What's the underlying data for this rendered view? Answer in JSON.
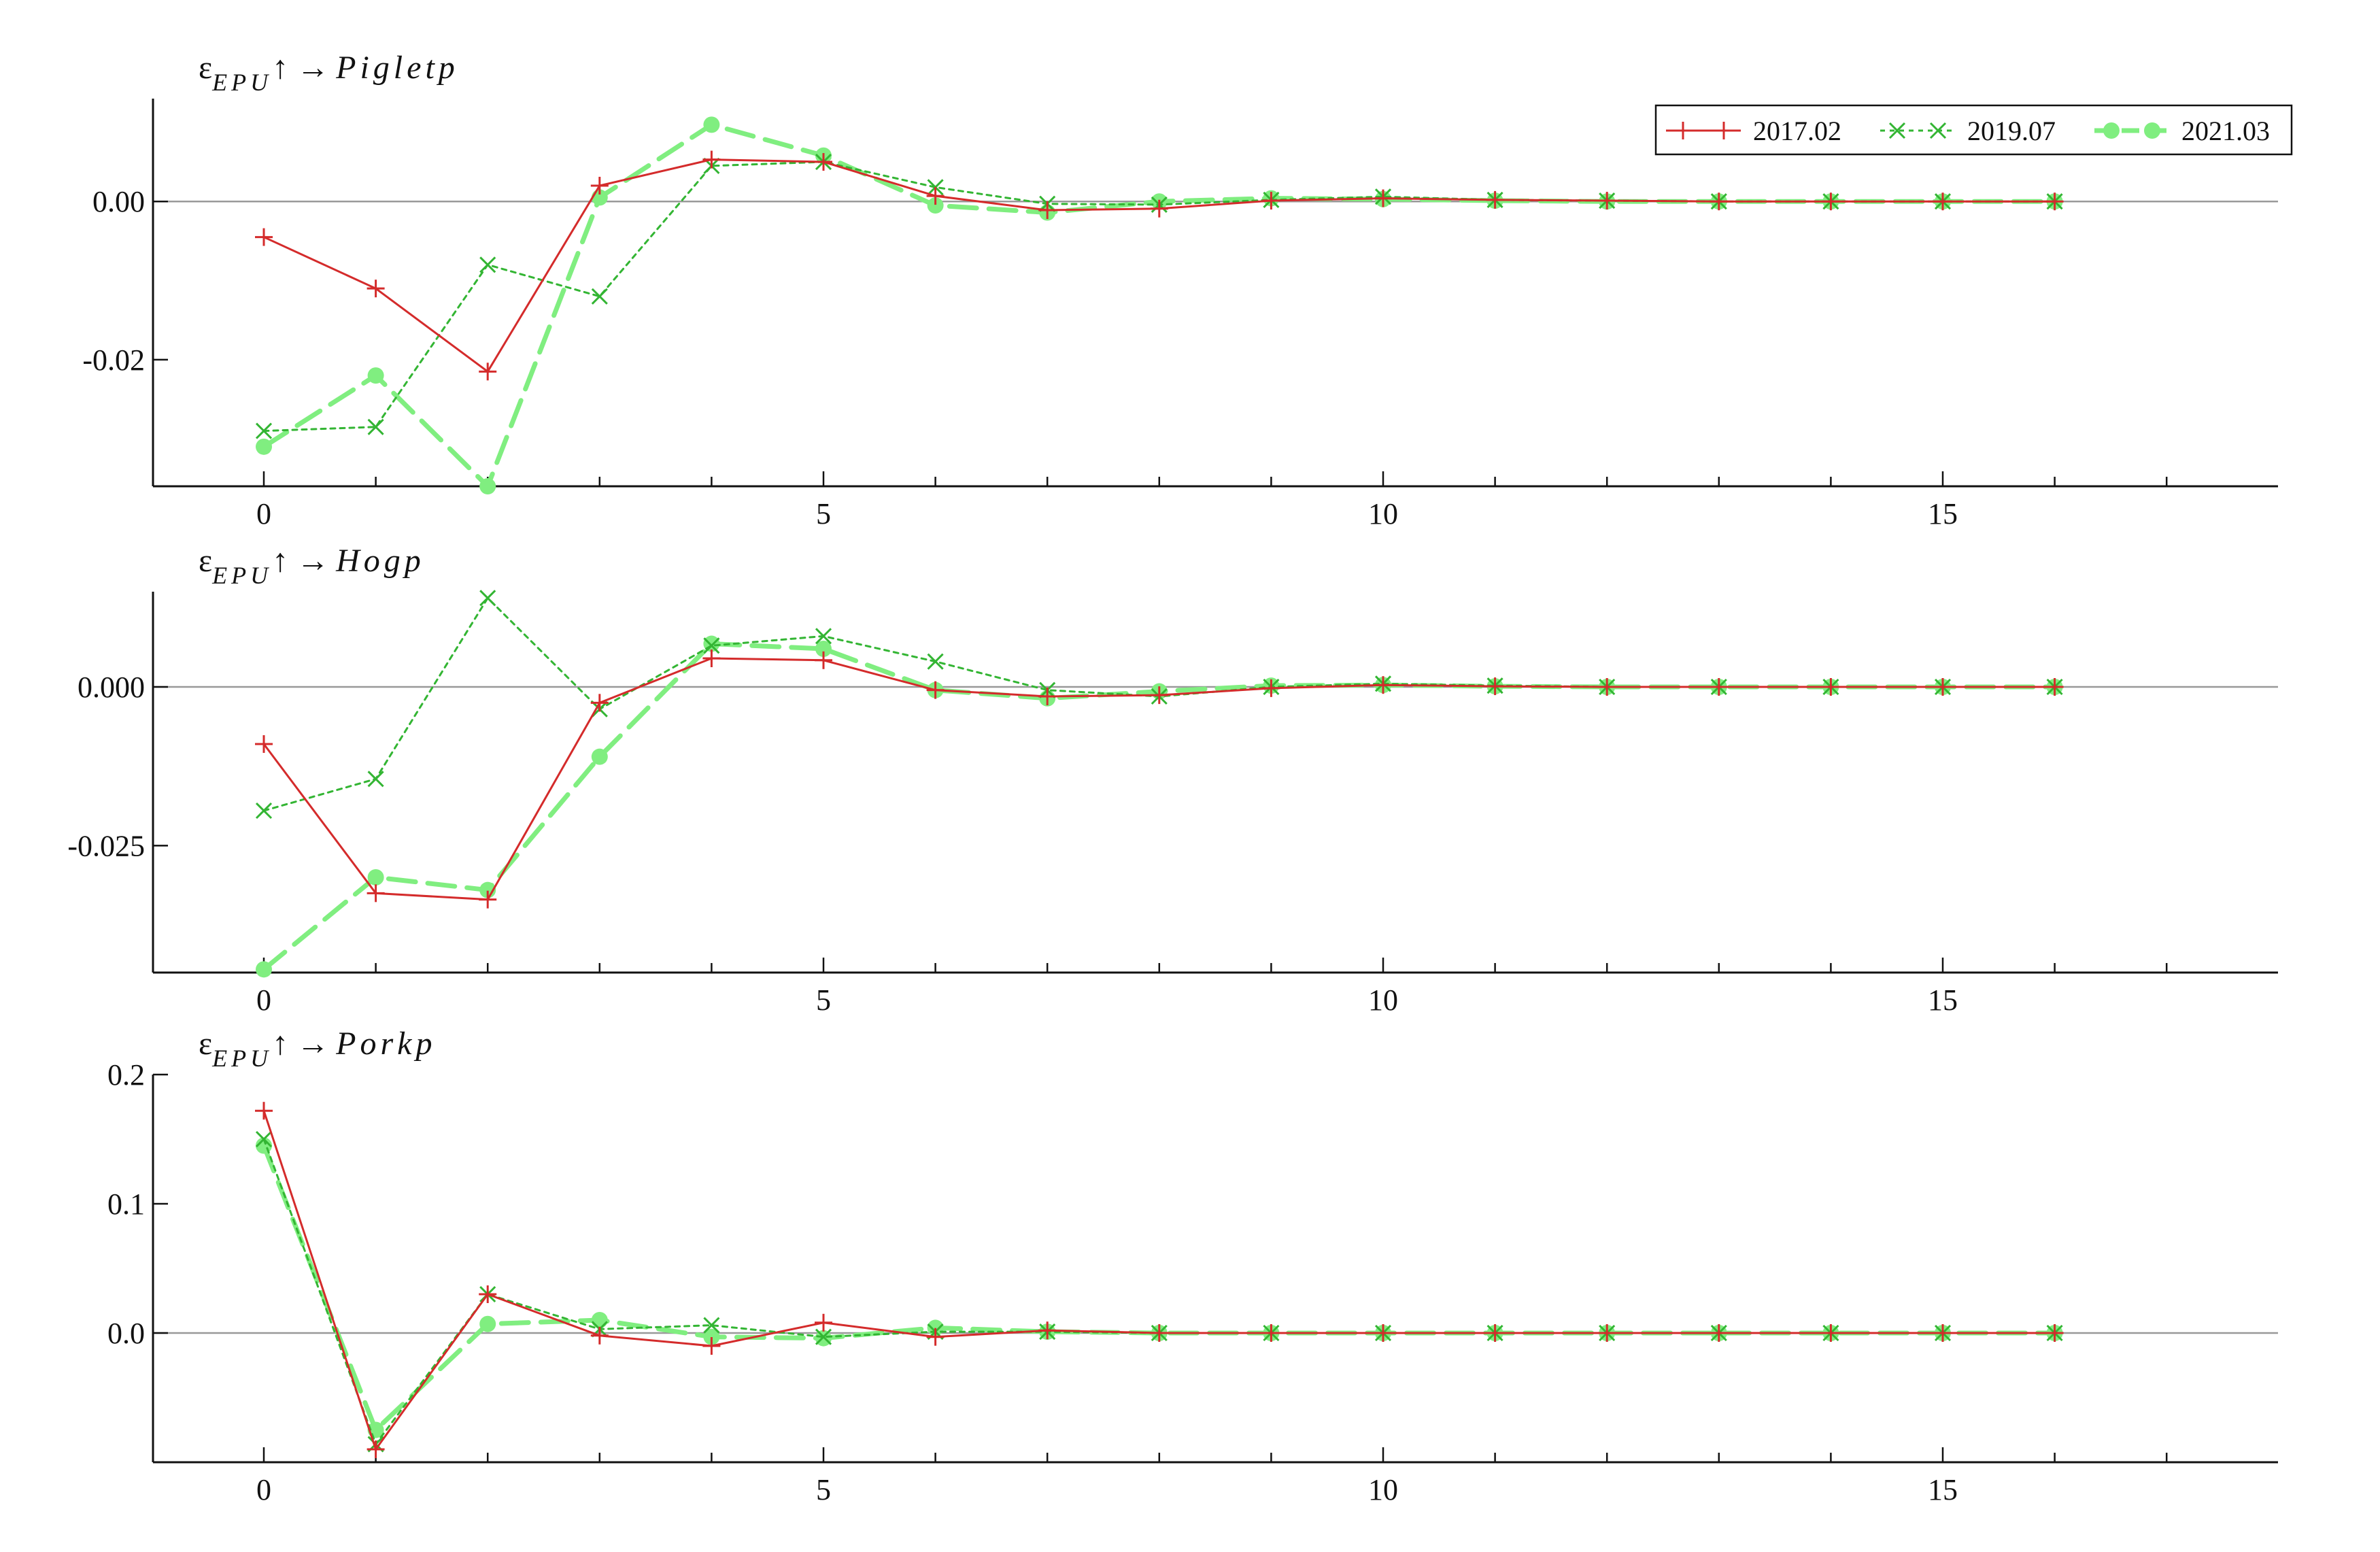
{
  "legend": [
    "2017.02",
    "2019.07",
    "2021.03"
  ],
  "colors": {
    "s2017": "#d42b2b",
    "s2019": "#33b533",
    "s2021": "#80ee80",
    "axis": "#111111",
    "zero": "#999999"
  },
  "chart_data": [
    {
      "type": "line",
      "title": {
        "eps": "ε",
        "sub": "EPU",
        "arrow": "↑ →",
        "target": "Pigletp"
      },
      "x": [
        0,
        1,
        2,
        3,
        4,
        5,
        6,
        7,
        8,
        9,
        10,
        11,
        12,
        13,
        14,
        15,
        16
      ],
      "xlim": [
        0,
        18
      ],
      "xticks": [
        0,
        5,
        10,
        15
      ],
      "ylim": [
        -0.036,
        0.013
      ],
      "yticks": [
        0.0,
        -0.02
      ],
      "ytick_labels": [
        "0.00",
        "-0.02"
      ],
      "legend_position": "top-right",
      "series": [
        {
          "name": "2017.02",
          "style": "solid-plus",
          "values": [
            -0.0045,
            -0.011,
            -0.0215,
            0.002,
            0.0053,
            0.005,
            0.0007,
            -0.0011,
            -0.0009,
            0.0001,
            0.0004,
            0.0002,
            0.0001,
            0.0,
            0.0,
            0.0,
            0.0
          ]
        },
        {
          "name": "2019.07",
          "style": "dotted-x",
          "values": [
            -0.029,
            -0.0285,
            -0.008,
            -0.012,
            0.0045,
            0.005,
            0.0018,
            -0.0003,
            -0.0004,
            0.0002,
            0.0006,
            0.0002,
            0.0001,
            0.0,
            0.0,
            0.0,
            0.0
          ]
        },
        {
          "name": "2021.03",
          "style": "dashed-dot",
          "values": [
            -0.031,
            -0.022,
            -0.036,
            0.0005,
            0.0097,
            0.0058,
            -0.0005,
            -0.0014,
            0.0,
            0.0004,
            0.0003,
            0.0001,
            0.0,
            0.0,
            0.0,
            0.0,
            0.0
          ]
        }
      ]
    },
    {
      "type": "line",
      "title": {
        "eps": "ε",
        "sub": "EPU",
        "arrow": "↑ →",
        "target": "Hogp"
      },
      "x": [
        0,
        1,
        2,
        3,
        4,
        5,
        6,
        7,
        8,
        9,
        10,
        11,
        12,
        13,
        14,
        15,
        16
      ],
      "xlim": [
        0,
        18
      ],
      "xticks": [
        0,
        5,
        10,
        15
      ],
      "ylim": [
        -0.045,
        0.015
      ],
      "yticks": [
        0.0,
        -0.025
      ],
      "ytick_labels": [
        "0.000",
        "-0.025"
      ],
      "series": [
        {
          "name": "2017.02",
          "style": "solid-plus",
          "values": [
            -0.009,
            -0.0325,
            -0.0335,
            -0.0025,
            0.0045,
            0.0042,
            -0.0005,
            -0.0015,
            -0.0013,
            -0.0002,
            0.0003,
            0.0001,
            0.0,
            0.0,
            0.0,
            0.0,
            0.0
          ]
        },
        {
          "name": "2019.07",
          "style": "dotted-x",
          "values": [
            -0.0195,
            -0.0145,
            0.014,
            -0.0035,
            0.0065,
            0.008,
            0.004,
            -0.0005,
            -0.0015,
            0.0,
            0.0005,
            0.0002,
            0.0,
            0.0,
            0.0,
            0.0,
            0.0
          ]
        },
        {
          "name": "2021.03",
          "style": "dashed-dot",
          "values": [
            -0.0445,
            -0.03,
            -0.032,
            -0.011,
            0.0068,
            0.006,
            -0.0005,
            -0.0018,
            -0.0007,
            0.0002,
            0.0003,
            0.0001,
            0.0,
            0.0,
            0.0,
            0.0,
            0.0
          ]
        }
      ]
    },
    {
      "type": "line",
      "title": {
        "eps": "ε",
        "sub": "EPU",
        "arrow": "↑ →",
        "target": "Porkp"
      },
      "x": [
        0,
        1,
        2,
        3,
        4,
        5,
        6,
        7,
        8,
        9,
        10,
        11,
        12,
        13,
        14,
        15,
        16
      ],
      "xlim": [
        0,
        18
      ],
      "xticks": [
        0,
        5,
        10,
        15
      ],
      "ylim": [
        -0.1,
        0.2
      ],
      "yticks": [
        0.2,
        0.1,
        0.0
      ],
      "ytick_labels": [
        "0.2",
        "0.1",
        "0.0"
      ],
      "series": [
        {
          "name": "2017.02",
          "style": "solid-plus",
          "values": [
            0.172,
            -0.09,
            0.03,
            -0.002,
            -0.01,
            0.008,
            -0.003,
            0.002,
            0.0,
            0.0,
            0.0,
            0.0,
            0.0,
            0.0,
            0.0,
            0.0,
            0.0
          ]
        },
        {
          "name": "2019.07",
          "style": "dotted-x",
          "values": [
            0.15,
            -0.086,
            0.03,
            0.003,
            0.006,
            -0.003,
            0.001,
            0.001,
            0.0,
            0.0,
            0.0,
            0.0,
            0.0,
            0.0,
            0.0,
            0.0,
            0.0
          ]
        },
        {
          "name": "2021.03",
          "style": "dashed-dot",
          "values": [
            0.145,
            -0.075,
            0.007,
            0.01,
            -0.003,
            -0.004,
            0.004,
            0.001,
            0.0,
            0.0,
            0.0,
            0.0,
            0.0,
            0.0,
            0.0,
            0.0,
            0.0
          ]
        }
      ]
    }
  ]
}
